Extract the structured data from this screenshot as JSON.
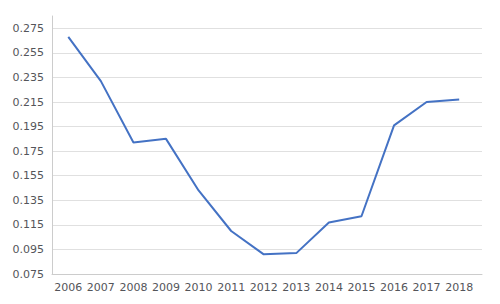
{
  "chart_data": {
    "type": "line",
    "x": [
      2006,
      2007,
      2008,
      2009,
      2010,
      2011,
      2012,
      2013,
      2014,
      2015,
      2016,
      2017,
      2018
    ],
    "values": [
      0.268,
      0.232,
      0.182,
      0.185,
      0.143,
      0.11,
      0.091,
      0.092,
      0.117,
      0.122,
      0.196,
      0.215,
      0.217
    ],
    "color": "#4472C4",
    "xlim": [
      2005.5,
      2018.7
    ],
    "xticks": [
      2006,
      2007,
      2008,
      2009,
      2010,
      2011,
      2012,
      2013,
      2014,
      2015,
      2016,
      2017,
      2018
    ],
    "ylim": [
      0.075,
      0.285
    ],
    "yticks": [
      0.075,
      0.095,
      0.115,
      0.135,
      0.155,
      0.175,
      0.195,
      0.215,
      0.235,
      0.255,
      0.275
    ],
    "grid": true
  }
}
